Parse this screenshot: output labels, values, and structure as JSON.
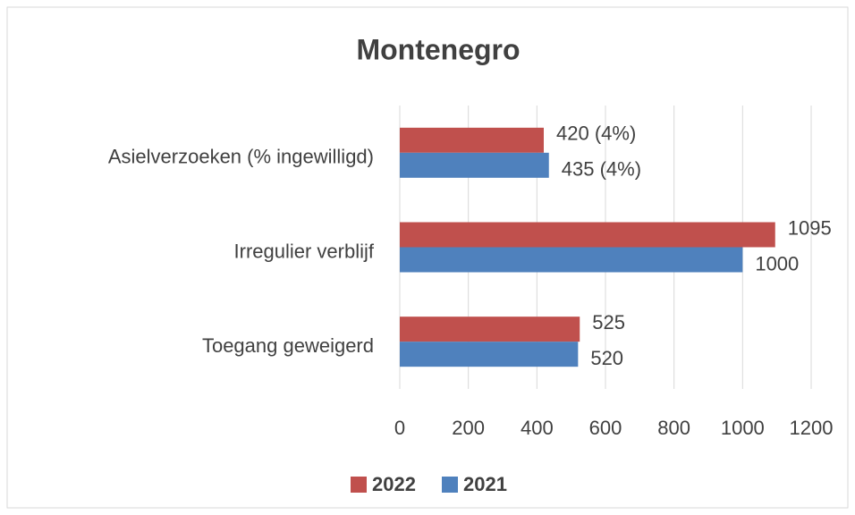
{
  "chart_data": {
    "type": "bar",
    "orientation": "horizontal",
    "title": "Montenegro",
    "categories": [
      "Asielverzoeken (% ingewilligd)",
      "Irregulier verblijf",
      "Toegang geweigerd"
    ],
    "series": [
      {
        "name": "2022",
        "color": "#c0504d",
        "values": [
          420,
          1095,
          525
        ],
        "value_labels": [
          "420 (4%)",
          "1095",
          "525"
        ]
      },
      {
        "name": "2021",
        "color": "#4f81bd",
        "values": [
          435,
          1000,
          520
        ],
        "value_labels": [
          "435 (4%)",
          "1000",
          "520"
        ]
      }
    ],
    "xlim": [
      0,
      1200
    ],
    "xticks": [
      0,
      200,
      400,
      600,
      800,
      1000,
      1200
    ],
    "grid": true,
    "legend": "bottom"
  }
}
